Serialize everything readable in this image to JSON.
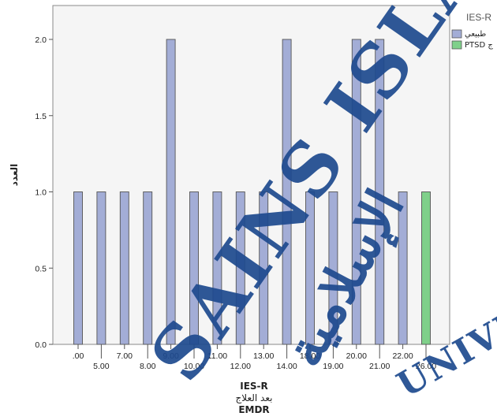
{
  "chart_data": {
    "type": "bar",
    "ylabel": "العدد",
    "xlabel_lines": [
      "IES-R",
      "بعد العلاج",
      "EMDR"
    ],
    "ylim": [
      0,
      2.0
    ],
    "yticks": [
      "0.0",
      "0.5",
      "1.0",
      "1.5",
      "2.0"
    ],
    "ytick_values": [
      0,
      0.5,
      1.0,
      1.5,
      2.0
    ],
    "grid": false,
    "legend_position": "top-right",
    "legend_title": "IES-R",
    "categories": [
      ".00",
      "5.00",
      "7.00",
      "8.00",
      "9.00",
      "10.00",
      "11.00",
      "12.00",
      "13.00",
      "14.00",
      "18.00",
      "19.00",
      "20.00",
      "21.00",
      "22.00",
      "26.00"
    ],
    "series": [
      {
        "name": "طبيعي",
        "color": "#a3add6",
        "values": [
          1,
          1,
          1,
          1,
          2,
          1,
          1,
          1,
          1,
          2,
          1,
          1,
          2,
          2,
          1,
          0
        ]
      },
      {
        "name": "PTSD ج",
        "color": "#7fd08a",
        "values": [
          0,
          0,
          0,
          0,
          0,
          0,
          0,
          0,
          0,
          0,
          0,
          0,
          0,
          0,
          0,
          1
        ]
      }
    ]
  },
  "watermark": {
    "lines": [
      "SAINS ISLAM",
      "UNIVERSITI",
      "الإسلامية"
    ],
    "color": "#1e4a8f"
  }
}
